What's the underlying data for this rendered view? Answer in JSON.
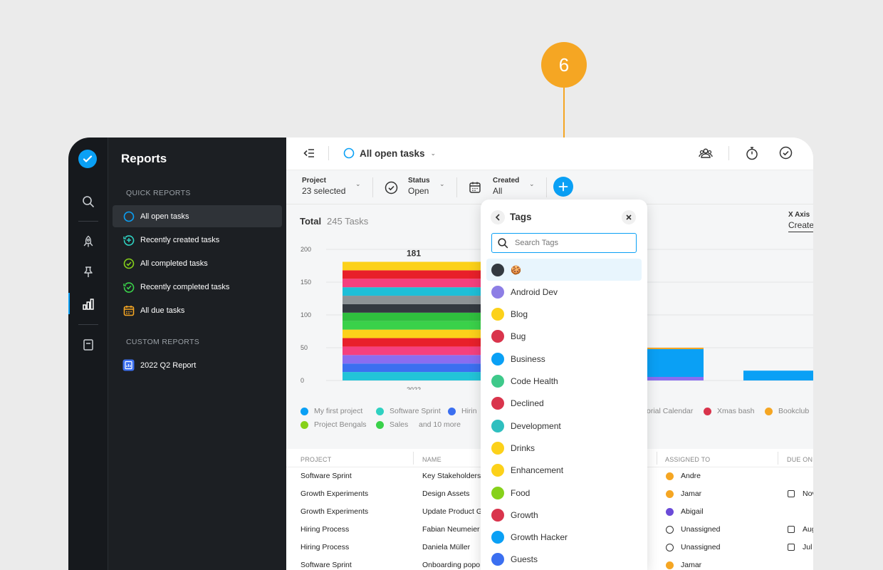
{
  "step": "6",
  "sidebar": {
    "title": "Reports",
    "quick_heading": "QUICK REPORTS",
    "quick_items": [
      {
        "label": "All open tasks"
      },
      {
        "label": "Recently created tasks"
      },
      {
        "label": "All completed tasks"
      },
      {
        "label": "Recently completed tasks"
      },
      {
        "label": "All due tasks"
      }
    ],
    "custom_heading": "CUSTOM REPORTS",
    "custom_items": [
      {
        "label": "2022 Q2 Report"
      }
    ]
  },
  "topbar": {
    "view_title": "All open tasks"
  },
  "filters": {
    "project": {
      "label": "Project",
      "value": "23 selected"
    },
    "status": {
      "label": "Status",
      "value": "Open"
    },
    "created": {
      "label": "Created",
      "value": "All"
    }
  },
  "summary": {
    "label": "Total",
    "count": "245 Tasks",
    "xaxis_label": "X Axis",
    "xaxis_value": "Create"
  },
  "chart_data": {
    "type": "bar",
    "stacked": true,
    "categories": [
      "2022"
    ],
    "yticks": [
      0,
      50,
      100,
      150,
      200
    ],
    "ylim": [
      0,
      200
    ],
    "totals": [
      181
    ],
    "data_labels": [
      "181"
    ],
    "legend": [
      "My first project",
      "Software Sprint",
      "Hirin",
      "orial Calendar",
      "Xmas bash",
      "Bookclub",
      "Project Bengals",
      "Sales"
    ],
    "legend_more": "and 10 more",
    "series_colors": [
      "#22c4d8",
      "#3b6ff0",
      "#8a6df0",
      "#f5407e",
      "#e8202a",
      "#fcd11a",
      "#3ad14a",
      "#2fbf3e",
      "#333940",
      "#8d9396",
      "#1ebfd8",
      "#f5407e",
      "#e8202a",
      "#fcd11a"
    ],
    "partial_bar_values": [
      50,
      15
    ]
  },
  "table": {
    "headers": [
      "PROJECT",
      "NAME",
      "ASSIGNED TO",
      "DUE ON"
    ],
    "rows": [
      {
        "project": "Software Sprint",
        "name": "Key Stakeholders",
        "assignee": "Andre",
        "due": ""
      },
      {
        "project": "Growth Experiments",
        "name": "Design Assets",
        "assignee": "Jamar",
        "due": "Nov"
      },
      {
        "project": "Growth Experiments",
        "name": "Update Product G",
        "assignee": "Abigail",
        "due": ""
      },
      {
        "project": "Hiring Process",
        "name": "Fabian Neumeier",
        "assignee": "Unassigned",
        "due": "Aug"
      },
      {
        "project": "Hiring Process",
        "name": "Daniela Müller",
        "assignee": "Unassigned",
        "due": "Jul"
      },
      {
        "project": "Software Sprint",
        "name": "Onboarding popo",
        "assignee": "Jamar",
        "due": ""
      }
    ]
  },
  "tags_dropdown": {
    "title": "Tags",
    "search_placeholder": "Search Tags",
    "tags": [
      {
        "name": "",
        "emoji": "🍪",
        "color": "#333940"
      },
      {
        "name": "Android Dev",
        "color": "#8d7ee5"
      },
      {
        "name": "Blog",
        "color": "#fcd11a"
      },
      {
        "name": "Bug",
        "color": "#d9344c"
      },
      {
        "name": "Business",
        "color": "#0aa0f5"
      },
      {
        "name": "Code Health",
        "color": "#3ec98a"
      },
      {
        "name": "Declined",
        "color": "#d9344c"
      },
      {
        "name": "Development",
        "color": "#2fbfbf"
      },
      {
        "name": "Drinks",
        "color": "#fcd11a"
      },
      {
        "name": "Enhancement",
        "color": "#fcd11a"
      },
      {
        "name": "Food",
        "color": "#86d11a"
      },
      {
        "name": "Growth",
        "color": "#d9344c"
      },
      {
        "name": "Growth Hacker",
        "color": "#0aa0f5"
      },
      {
        "name": "Guests",
        "color": "#3b6ff0"
      }
    ]
  },
  "colors": {
    "accent": "#0aa0f5",
    "step": "#f5a623",
    "sidebar_bg": "#1c1f23"
  }
}
